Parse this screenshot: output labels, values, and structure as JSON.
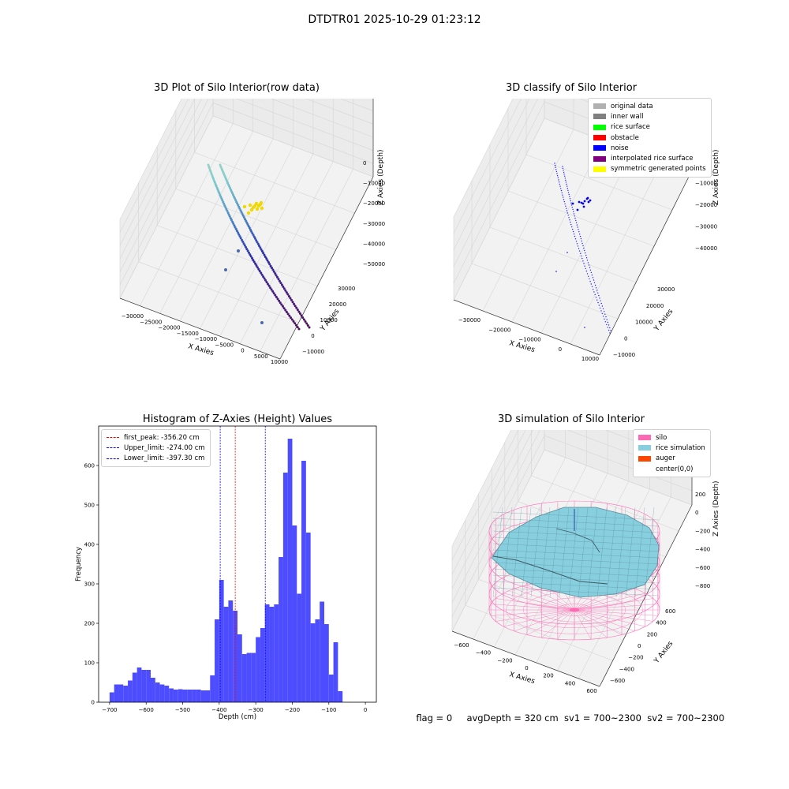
{
  "figure": {
    "suptitle": "DTDTR01 2025-10-29 01:23:12"
  },
  "colors": {
    "hist_bar": "#4d4dff",
    "first_peak": "#ff0000",
    "limit": "#0000ff",
    "silo": "#ff69b4",
    "rice": "#87cedf",
    "auger": "#ff4500"
  },
  "chart_data": [
    {
      "type": "scatter3d",
      "title": "3D Plot of Silo Interior(row data)",
      "xlabel": "X Axies",
      "ylabel": "Y Axies",
      "zlabel": "Z Axies (Depth)",
      "xticks": [
        "−30000",
        "−25000",
        "−20000",
        "−15000",
        "−10000",
        "−5000",
        "0",
        "5000",
        "10000"
      ],
      "yticks": [
        "−10000",
        "0",
        "10000",
        "20000",
        "30000"
      ],
      "zticks": [
        "0",
        "−10000",
        "−20000",
        "−30000",
        "−40000",
        "−50000"
      ]
    },
    {
      "type": "scatter3d",
      "title": "3D classify of Silo Interior",
      "xlabel": "X Axies",
      "ylabel": "Y Axies",
      "zlabel": "Z Axies (Depth)",
      "xticks": [
        "−30000",
        "−20000",
        "−10000",
        "0",
        "10000"
      ],
      "yticks": [
        "−10000",
        "0",
        "10000",
        "20000",
        "30000"
      ],
      "zticks": [
        "0",
        "−10000",
        "−20000",
        "−30000",
        "−40000"
      ],
      "legend": [
        {
          "label": "original data",
          "color": "#b0b0b0"
        },
        {
          "label": "inner wall",
          "color": "#808080"
        },
        {
          "label": "rice surface",
          "color": "#00ff00"
        },
        {
          "label": "obstacle",
          "color": "#ff0000"
        },
        {
          "label": "noise",
          "color": "#0000ff"
        },
        {
          "label": "interpolated rice surface",
          "color": "#800080"
        },
        {
          "label": "symmetric generated points",
          "color": "#ffff00"
        }
      ]
    },
    {
      "type": "bar",
      "title": "Histogram of Z-Axies (Height) Values",
      "xlabel": "Depth (cm)",
      "ylabel": "Frequency",
      "xlim": [
        -730,
        30
      ],
      "ylim": [
        0,
        700
      ],
      "xticks": [
        -700,
        -600,
        -500,
        -400,
        -300,
        -200,
        -100,
        0
      ],
      "yticks": [
        0,
        100,
        200,
        300,
        400,
        500,
        600
      ],
      "bin_start": -700,
      "bin_width": 12.5,
      "values": [
        25,
        45,
        45,
        42,
        55,
        75,
        88,
        82,
        82,
        62,
        50,
        45,
        42,
        35,
        32,
        33,
        32,
        32,
        32,
        32,
        30,
        30,
        68,
        210,
        310,
        242,
        258,
        232,
        172,
        122,
        125,
        125,
        165,
        188,
        248,
        242,
        248,
        368,
        582,
        668,
        448,
        275,
        612,
        430,
        200,
        210,
        255,
        198,
        70,
        152,
        28
      ],
      "vlines": [
        {
          "x": -356.2,
          "label": "first_peak: -356.20 cm",
          "color": "#ff0000"
        },
        {
          "x": -274.0,
          "label": "Upper_limit: -274.00 cm",
          "color": "#0000ff"
        },
        {
          "x": -397.3,
          "label": "Lower_limit: -397.30 cm",
          "color": "#0000ff"
        }
      ]
    },
    {
      "type": "surface3d",
      "title": "3D simulation of Silo Interior",
      "xlabel": "X Axies",
      "ylabel": "Y Axies",
      "zlabel": "Z Axies (Depth)",
      "xticks": [
        "−600",
        "−400",
        "−200",
        "0",
        "200",
        "400",
        "600"
      ],
      "yticks": [
        "−600",
        "−400",
        "−200",
        "0",
        "200",
        "400",
        "600"
      ],
      "zticks": [
        "200",
        "0",
        "−200",
        "−400",
        "−600",
        "−800"
      ],
      "legend": [
        {
          "label": "silo",
          "color": "#ff69b4"
        },
        {
          "label": "rice simulation",
          "color": "#87cedf"
        },
        {
          "label": "auger",
          "color": "#ff4500"
        },
        {
          "label": "center(0,0)",
          "color": "#ffffff"
        }
      ]
    }
  ],
  "footer": {
    "flag": "flag = 0",
    "avg_depth": "avgDepth = 320 cm",
    "sv1": "sv1 = 700~2300",
    "sv2": "sv2 = 700~2300"
  }
}
